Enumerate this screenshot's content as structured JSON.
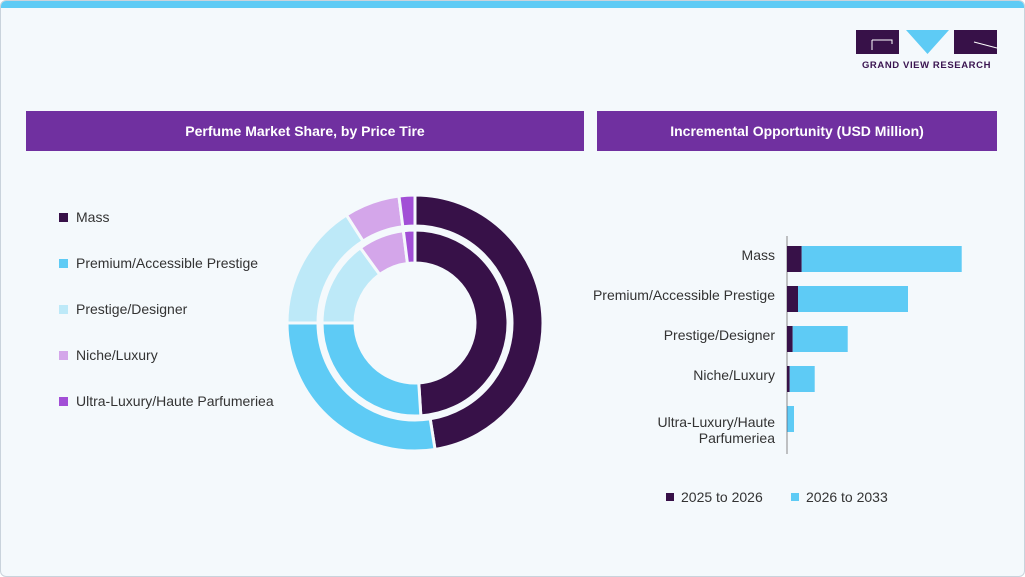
{
  "brand": {
    "name": "GRAND VIEW RESEARCH",
    "dark": "#371148",
    "light": "#5ecbf5"
  },
  "chart_data": [
    {
      "type": "pie",
      "title": "Perfume Market Share, by Price Tire",
      "style": "double donut (inner and outer rings)",
      "categories": [
        "Mass",
        "Premium/Accessible Prestige",
        "Prestige/Designer",
        "Niche/Luxury",
        "Ultra-Luxury/Haute Parfumeriea"
      ],
      "colors": [
        "#371148",
        "#5ecbf5",
        "#bde9f8",
        "#d4a6ea",
        "#a24fd6"
      ],
      "rings": [
        {
          "ring": "inner",
          "values": [
            49,
            26,
            15,
            8,
            2
          ]
        },
        {
          "ring": "outer",
          "values": [
            47.5,
            27.5,
            16,
            7,
            2
          ]
        }
      ],
      "legend": "left"
    },
    {
      "type": "bar",
      "orientation": "horizontal",
      "stacked": true,
      "title": "Incremental Opportunity (USD Million)",
      "categories": [
        "Mass",
        "Premium/Accessible Prestige",
        "Prestige/Designer",
        "Niche/Luxury",
        "Ultra-Luxury/Haute Parfumeriea"
      ],
      "category_lines": [
        [
          "Mass"
        ],
        [
          "Premium/Accessible Prestige"
        ],
        [
          "Prestige/Designer"
        ],
        [
          "Niche/Luxury"
        ],
        [
          "Ultra-Luxury/Haute",
          "Parfumeriea"
        ]
      ],
      "series": [
        {
          "name": "2025 to 2026",
          "color": "#371148",
          "values": [
            14.7,
            11,
            5.7,
            2.7,
            0.3
          ]
        },
        {
          "name": "2026 to 2033",
          "color": "#5ecbf5",
          "values": [
            160,
            110,
            55,
            25,
            6.7
          ]
        }
      ],
      "axis_ticks": "none shown",
      "legend": "bottom"
    }
  ]
}
